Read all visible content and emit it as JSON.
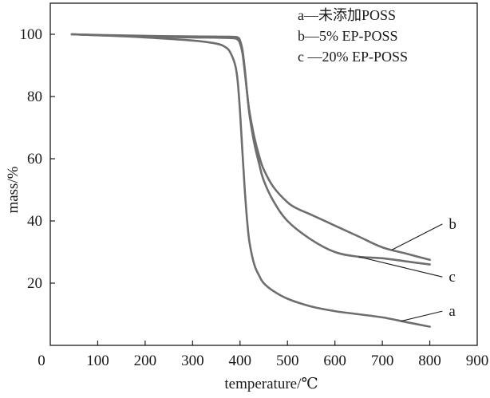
{
  "chart_data": {
    "type": "line",
    "xlabel": "temperature/℃",
    "ylabel": "mass/%",
    "xlim": [
      0,
      900
    ],
    "ylim": [
      0,
      110
    ],
    "x_ticks": [
      0,
      100,
      200,
      300,
      400,
      500,
      600,
      700,
      800,
      900
    ],
    "y_ticks": [
      20,
      40,
      60,
      80,
      100
    ],
    "x_tick_labels": [
      "0",
      "100",
      "200",
      "300",
      "400",
      "500",
      "600",
      "700",
      "800",
      "900"
    ],
    "y_tick_labels": [
      "20",
      "40",
      "60",
      "80",
      "100"
    ],
    "grid": false,
    "legend_position": "top-right",
    "legend": [
      "a—未添加POSS",
      "b—5% EP-POSS",
      "c —20% EP-POSS"
    ],
    "series": [
      {
        "name": "a",
        "color": "#6e6e6e",
        "x": [
          45,
          100,
          200,
          300,
          350,
          370,
          380,
          390,
          395,
          400,
          405,
          410,
          415,
          420,
          430,
          440,
          450,
          470,
          500,
          550,
          600,
          650,
          700,
          750,
          800
        ],
        "y": [
          100,
          99.7,
          99.0,
          98.0,
          97.0,
          95.8,
          94.0,
          90.0,
          85.0,
          75.0,
          62.0,
          50.0,
          40.0,
          33.0,
          26.0,
          22.5,
          20.0,
          17.5,
          15.0,
          12.5,
          11.0,
          10.0,
          9.0,
          7.5,
          6.0
        ]
      },
      {
        "name": "b",
        "color": "#6e6e6e",
        "x": [
          45,
          100,
          200,
          300,
          380,
          395,
          400,
          405,
          410,
          415,
          420,
          430,
          440,
          450,
          470,
          500,
          520,
          550,
          600,
          650,
          700,
          750,
          800
        ],
        "y": [
          100,
          99.8,
          99.5,
          99.3,
          99.2,
          99.0,
          98.0,
          95.0,
          89.0,
          81.0,
          75.0,
          67.0,
          61.0,
          56.5,
          51.0,
          46.0,
          44.0,
          42.0,
          38.5,
          35.0,
          31.5,
          29.5,
          27.5
        ]
      },
      {
        "name": "c",
        "color": "#6e6e6e",
        "x": [
          45,
          100,
          200,
          300,
          380,
          395,
          400,
          405,
          410,
          415,
          420,
          430,
          440,
          450,
          470,
          500,
          550,
          600,
          650,
          700,
          750,
          800
        ],
        "y": [
          100,
          99.7,
          99.3,
          99.0,
          98.8,
          98.3,
          97.0,
          94.0,
          88.0,
          81.0,
          74.0,
          65.0,
          58.5,
          53.0,
          46.5,
          40.0,
          34.0,
          30.0,
          28.5,
          28.0,
          27.0,
          26.0
        ]
      }
    ],
    "curve_labels": [
      {
        "text": "a",
        "series": "a",
        "at_x": 740,
        "label_x": 840,
        "label_y": 11
      },
      {
        "text": "b",
        "series": "b",
        "at_x": 720,
        "label_x": 840,
        "label_y": 39
      },
      {
        "text": "c",
        "series": "c",
        "at_x": 650,
        "label_x": 840,
        "label_y": 22
      }
    ]
  }
}
